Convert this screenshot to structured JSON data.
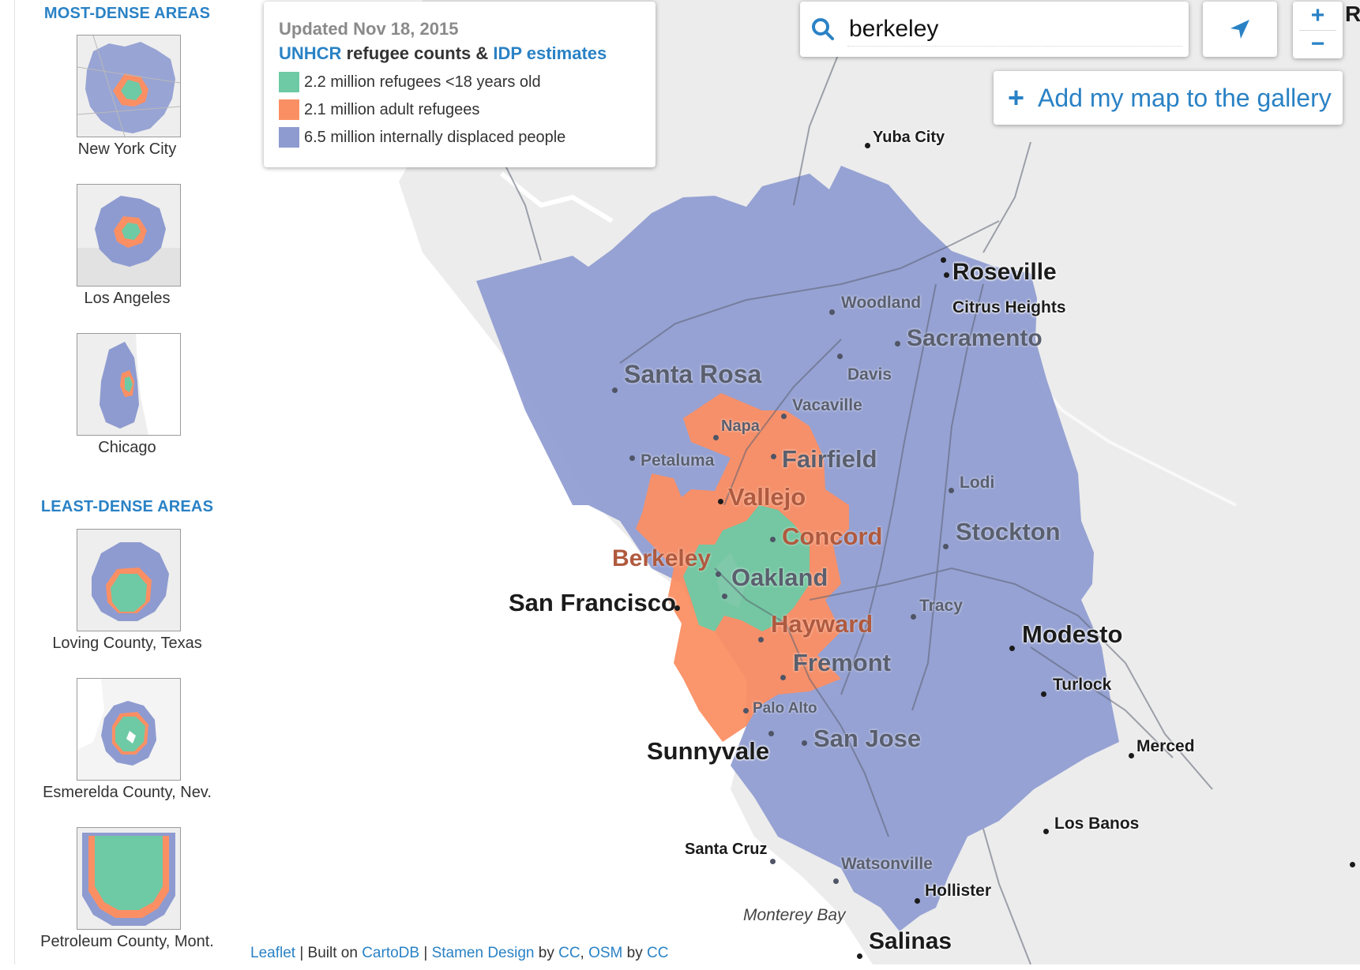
{
  "sidebar": {
    "most_dense_heading": "MOST-DENSE AREAS",
    "least_dense_heading": "LEAST-DENSE AREAS",
    "most_dense": [
      {
        "label": "New York City"
      },
      {
        "label": "Los Angeles"
      },
      {
        "label": "Chicago"
      }
    ],
    "least_dense": [
      {
        "label": "Loving County, Texas"
      },
      {
        "label": "Esmerelda County, Nev."
      },
      {
        "label": "Petroleum County, Mont."
      }
    ]
  },
  "legend": {
    "updated": "Updated Nov 18, 2015",
    "title_link1": "UNHCR",
    "title_mid": " refugee counts & ",
    "title_link2": "IDP estimates",
    "items": [
      {
        "label": "2.2 million refugees <18 years old",
        "color": "#6dcaa5"
      },
      {
        "label": "2.1 million adult refugees",
        "color": "#fb8f64"
      },
      {
        "label": "6.5 million internally displaced people",
        "color": "#8e9bd0"
      }
    ]
  },
  "search": {
    "value": "berkeley",
    "icon": "search-icon"
  },
  "locate": {
    "icon": "location-arrow-icon"
  },
  "zoom": {
    "in": "+",
    "out": "−"
  },
  "gallery": {
    "plus": "+",
    "label": "Add my map to the gallery"
  },
  "corner_text": "R",
  "map": {
    "colors": {
      "inner": "#6dcaa5",
      "middle": "#fb8f64",
      "outer": "#8e9bd0",
      "land": "#ececec",
      "water": "#ffffff"
    },
    "places": {
      "yuba_city": "Yuba City",
      "roseville": "Roseville",
      "citrus_heights": "Citrus Heights",
      "woodland": "Woodland",
      "sacramento": "Sacramento",
      "davis": "Davis",
      "santa_rosa": "Santa Rosa",
      "vacaville": "Vacaville",
      "napa": "Napa",
      "petaluma": "Petaluma",
      "fairfield": "Fairfield",
      "vallejo": "Vallejo",
      "lodi": "Lodi",
      "concord": "Concord",
      "stockton": "Stockton",
      "berkeley": "Berkeley",
      "oakland": "Oakland",
      "san_francisco": "San Francisco",
      "tracy": "Tracy",
      "hayward": "Hayward",
      "modesto": "Modesto",
      "fremont": "Fremont",
      "turlock": "Turlock",
      "palo_alto": "Palo Alto",
      "san_jose": "San Jose",
      "merced": "Merced",
      "sunnyvale": "Sunnyvale",
      "los_banos": "Los Banos",
      "santa_cruz": "Santa Cruz",
      "watsonville": "Watsonville",
      "hollister": "Hollister",
      "monterey_bay": "Monterey Bay",
      "salinas": "Salinas"
    }
  },
  "attribution": {
    "leaflet": "Leaflet",
    "built_on": " | Built on ",
    "cartodb": "CartoDB",
    "sep1": " | ",
    "stamen": "Stamen Design",
    "by1": " by ",
    "cc1": "CC",
    "comma": ", ",
    "osm": "OSM",
    "by2": " by ",
    "cc2": "CC"
  }
}
